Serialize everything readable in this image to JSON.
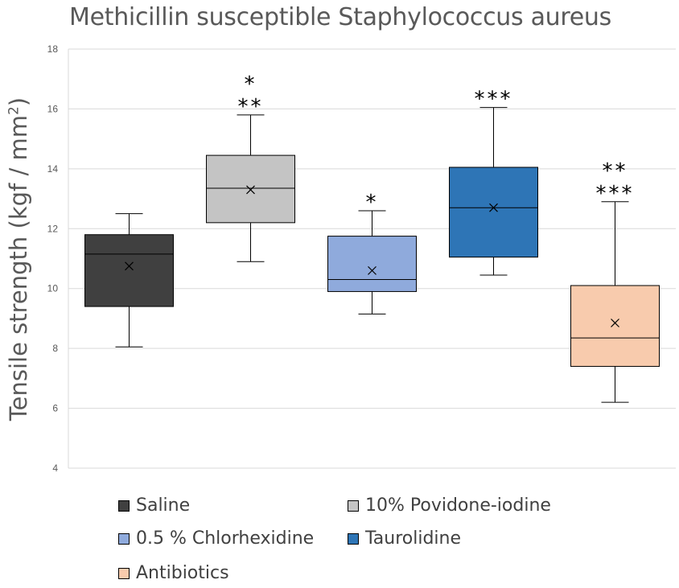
{
  "chart_data": {
    "type": "box",
    "title": "Methicillin susceptible Staphylococcus aureus",
    "ylabel": "Tensile strength (kgf / mm",
    "ylabel_sup": "2",
    "ylabel_close": ")",
    "ylim": [
      4,
      18
    ],
    "yticks": [
      "4",
      "6",
      "8",
      "10",
      "12",
      "14",
      "16",
      "18"
    ],
    "grid": true,
    "legend_position": "bottom",
    "series": [
      {
        "name": "Saline",
        "color": "#404040",
        "min": 8.05,
        "q1": 9.4,
        "median": 11.15,
        "q3": 11.8,
        "max": 12.5,
        "mean": 10.75,
        "stars": []
      },
      {
        "name": "10% Povidone-iodine",
        "color": "#c4c4c4",
        "min": 10.9,
        "q1": 12.2,
        "median": 13.35,
        "q3": 14.45,
        "max": 15.8,
        "mean": 13.3,
        "stars": [
          "*",
          "**"
        ]
      },
      {
        "name": "0.5 % Chlorhexidine",
        "color": "#8faadc",
        "min": 9.15,
        "q1": 9.9,
        "median": 10.3,
        "q3": 11.75,
        "max": 12.6,
        "mean": 10.6,
        "stars": [
          "*"
        ]
      },
      {
        "name": "Taurolidine",
        "color": "#2e75b6",
        "min": 10.45,
        "q1": 11.05,
        "median": 12.7,
        "q3": 14.05,
        "max": 16.05,
        "mean": 12.7,
        "stars": [
          "***"
        ]
      },
      {
        "name": "Antibiotics",
        "color": "#f8cbad",
        "min": 6.2,
        "q1": 7.4,
        "median": 8.35,
        "q3": 10.1,
        "max": 12.9,
        "mean": 8.85,
        "stars": [
          "**",
          "***"
        ]
      }
    ]
  }
}
